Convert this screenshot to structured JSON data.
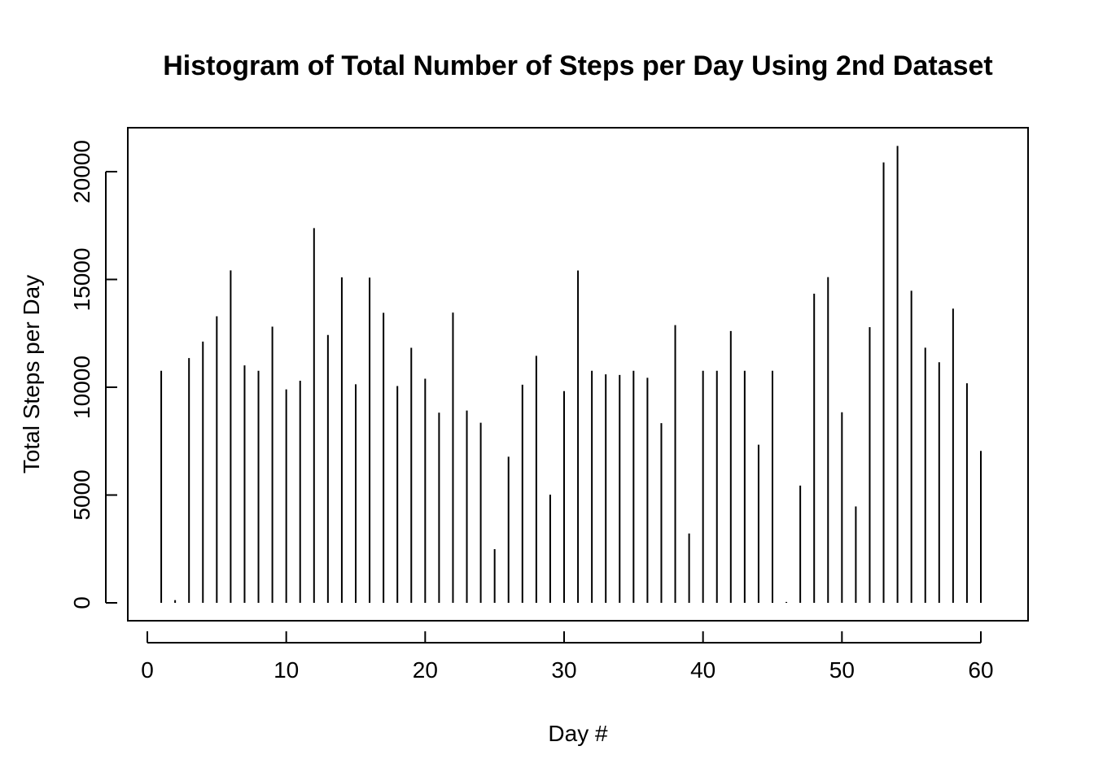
{
  "chart_data": {
    "type": "bar",
    "title": "Histogram of Total Number of Steps per Day Using 2nd Dataset",
    "xlabel": "Day #",
    "ylabel": "Total Steps per Day",
    "xlim": [
      0,
      61
    ],
    "ylim": [
      0,
      21194
    ],
    "x_ticks": [
      0,
      10,
      20,
      30,
      40,
      50,
      60
    ],
    "y_ticks": [
      0,
      5000,
      10000,
      15000,
      20000
    ],
    "x": [
      1,
      2,
      3,
      4,
      5,
      6,
      7,
      8,
      9,
      10,
      11,
      12,
      13,
      14,
      15,
      16,
      17,
      18,
      19,
      20,
      21,
      22,
      23,
      24,
      25,
      26,
      27,
      28,
      29,
      30,
      31,
      32,
      33,
      34,
      35,
      36,
      37,
      38,
      39,
      40,
      41,
      42,
      43,
      44,
      45,
      46,
      47,
      48,
      49,
      50,
      51,
      52,
      53,
      54,
      55,
      56,
      57,
      58,
      59,
      60,
      61
    ],
    "values": [
      10766,
      126,
      11352,
      12116,
      13294,
      15420,
      11015,
      10766,
      12811,
      9900,
      10304,
      17382,
      12426,
      15098,
      10139,
      15084,
      13452,
      10056,
      11829,
      10395,
      8821,
      13460,
      8918,
      8355,
      2492,
      6778,
      10119,
      11458,
      5018,
      9819,
      15414,
      10766,
      10600,
      10571,
      10766,
      10439,
      8334,
      12883,
      3219,
      10766,
      10766,
      12608,
      10765,
      7336,
      10766,
      41,
      5441,
      14339,
      15110,
      8841,
      4472,
      12787,
      20427,
      21194,
      14478,
      11834,
      11162,
      13646,
      10183,
      7047,
      0
    ],
    "grid": false,
    "legend": "none"
  }
}
